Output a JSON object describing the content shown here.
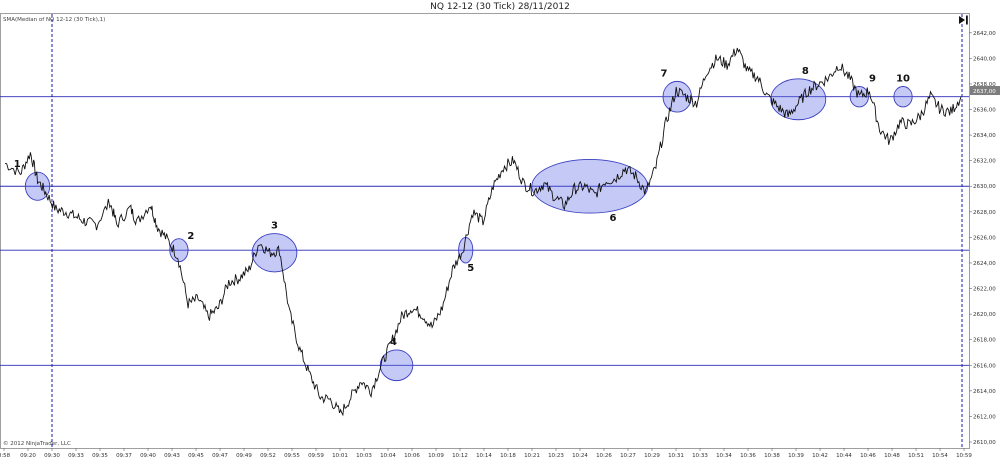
{
  "chart_data": {
    "type": "line",
    "title": "NQ 12-12 (30 Tick)  28/11/2012",
    "indicator_label": "SMA(Median of NQ 12-12 (30 Tick),1)",
    "copyright": "© 2012 NinjaTrader, LLC",
    "last_price_label": "2637,00",
    "ylim": [
      2610,
      2643
    ],
    "y_ticks": [
      "2642,00",
      "2640,00",
      "2638,00",
      "2636,00",
      "2634,00",
      "2632,00",
      "2630,00",
      "2628,00",
      "2626,00",
      "2624,00",
      "2622,00",
      "2620,00",
      "2618,00",
      "2616,00",
      "2614,00",
      "2612,00",
      "2610,00"
    ],
    "x_ticks": [
      "8:58",
      "09:20",
      "09:30",
      "09:33",
      "09:35",
      "09:37",
      "09:40",
      "09:43",
      "09:45",
      "09:47",
      "09:49",
      "09:52",
      "09:55",
      "09:59",
      "10:01",
      "10:03",
      "10:04",
      "10:06",
      "10:09",
      "10:12",
      "10:14",
      "10:18",
      "10:21",
      "10:23",
      "10:24",
      "10:26",
      "10:27",
      "10:29",
      "10:31",
      "10:33",
      "10:34",
      "10:36",
      "10:38",
      "10:39",
      "10:42",
      "10:44",
      "10:46",
      "10:48",
      "10:51",
      "10:54",
      "10:59"
    ],
    "horizontal_levels": [
      2637,
      2630,
      2625,
      2616
    ],
    "vertical_markers": [
      "09:30",
      "10:59"
    ],
    "price_path": [
      {
        "i": 0,
        "y": 2631.8
      },
      {
        "i": 1.5,
        "y": 2631.0
      },
      {
        "i": 2.5,
        "y": 2632.6
      },
      {
        "i": 3.2,
        "y": 2630.5
      },
      {
        "i": 4,
        "y": 2629.5
      },
      {
        "i": 5,
        "y": 2628.2
      },
      {
        "i": 6,
        "y": 2628.0
      },
      {
        "i": 7,
        "y": 2627.6
      },
      {
        "i": 8,
        "y": 2627.2
      },
      {
        "i": 9,
        "y": 2627.0
      },
      {
        "i": 10.3,
        "y": 2628.8
      },
      {
        "i": 11,
        "y": 2627.0
      },
      {
        "i": 12.3,
        "y": 2628.3
      },
      {
        "i": 13,
        "y": 2627.2
      },
      {
        "i": 14.3,
        "y": 2628.6
      },
      {
        "i": 15,
        "y": 2626.8
      },
      {
        "i": 16,
        "y": 2625.8
      },
      {
        "i": 17,
        "y": 2624.5
      },
      {
        "i": 18,
        "y": 2620.8
      },
      {
        "i": 19,
        "y": 2621.2
      },
      {
        "i": 20,
        "y": 2619.8
      },
      {
        "i": 21,
        "y": 2620.5
      },
      {
        "i": 22,
        "y": 2622.5
      },
      {
        "i": 23,
        "y": 2622.8
      },
      {
        "i": 24,
        "y": 2623.5
      },
      {
        "i": 25,
        "y": 2625.6
      },
      {
        "i": 26,
        "y": 2624.8
      },
      {
        "i": 27,
        "y": 2625.0
      },
      {
        "i": 28,
        "y": 2620.0
      },
      {
        "i": 29,
        "y": 2617.2
      },
      {
        "i": 30,
        "y": 2615.2
      },
      {
        "i": 31,
        "y": 2613.5
      },
      {
        "i": 32,
        "y": 2613.3
      },
      {
        "i": 33,
        "y": 2612.2
      },
      {
        "i": 34,
        "y": 2613.5
      },
      {
        "i": 35,
        "y": 2614.8
      },
      {
        "i": 36,
        "y": 2614.0
      },
      {
        "i": 37,
        "y": 2616.0
      },
      {
        "i": 38,
        "y": 2617.8
      },
      {
        "i": 39,
        "y": 2619.8
      },
      {
        "i": 40,
        "y": 2620.5
      },
      {
        "i": 41,
        "y": 2620.0
      },
      {
        "i": 42,
        "y": 2619.0
      },
      {
        "i": 43,
        "y": 2620.5
      },
      {
        "i": 44,
        "y": 2623.5
      },
      {
        "i": 45,
        "y": 2625.0
      },
      {
        "i": 46,
        "y": 2628.0
      },
      {
        "i": 47,
        "y": 2627.2
      },
      {
        "i": 48,
        "y": 2630.0
      },
      {
        "i": 49,
        "y": 2631.5
      },
      {
        "i": 50,
        "y": 2632.0
      },
      {
        "i": 51,
        "y": 2630.2
      },
      {
        "i": 52,
        "y": 2629.6
      },
      {
        "i": 53,
        "y": 2630.2
      },
      {
        "i": 54,
        "y": 2629.2
      },
      {
        "i": 55,
        "y": 2628.5
      },
      {
        "i": 56,
        "y": 2629.8
      },
      {
        "i": 57,
        "y": 2630.0
      },
      {
        "i": 58,
        "y": 2629.3
      },
      {
        "i": 59,
        "y": 2630.4
      },
      {
        "i": 60,
        "y": 2630.6
      },
      {
        "i": 61,
        "y": 2631.4
      },
      {
        "i": 62,
        "y": 2630.8
      },
      {
        "i": 63,
        "y": 2629.5
      },
      {
        "i": 64,
        "y": 2631.5
      },
      {
        "i": 65,
        "y": 2635.0
      },
      {
        "i": 66,
        "y": 2637.5
      },
      {
        "i": 67,
        "y": 2637.0
      },
      {
        "i": 68,
        "y": 2636.5
      },
      {
        "i": 69,
        "y": 2639.0
      },
      {
        "i": 70,
        "y": 2640.0
      },
      {
        "i": 71,
        "y": 2639.5
      },
      {
        "i": 72,
        "y": 2640.8
      },
      {
        "i": 73,
        "y": 2639.0
      },
      {
        "i": 74,
        "y": 2638.5
      },
      {
        "i": 75,
        "y": 2637.0
      },
      {
        "i": 76,
        "y": 2636.2
      },
      {
        "i": 77,
        "y": 2635.5
      },
      {
        "i": 78,
        "y": 2636.5
      },
      {
        "i": 79,
        "y": 2637.5
      },
      {
        "i": 80,
        "y": 2638.0
      },
      {
        "i": 81,
        "y": 2638.5
      },
      {
        "i": 82,
        "y": 2639.5
      },
      {
        "i": 83,
        "y": 2638.5
      },
      {
        "i": 84,
        "y": 2637.0
      },
      {
        "i": 85,
        "y": 2637.5
      },
      {
        "i": 86,
        "y": 2634.5
      },
      {
        "i": 87,
        "y": 2633.5
      },
      {
        "i": 88,
        "y": 2635.0
      },
      {
        "i": 89,
        "y": 2634.8
      },
      {
        "i": 90,
        "y": 2635.5
      },
      {
        "i": 91,
        "y": 2637.0
      },
      {
        "i": 92,
        "y": 2636.0
      },
      {
        "i": 93,
        "y": 2635.8
      },
      {
        "i": 94,
        "y": 2637.0
      }
    ],
    "annotations": [
      {
        "label": "1",
        "x": 3.2,
        "y": 2630,
        "rx": 1.2,
        "ry": 1.1
      },
      {
        "label": "2",
        "x": 17.1,
        "y": 2625,
        "rx": 0.9,
        "ry": 0.9
      },
      {
        "label": "3",
        "x": 26.5,
        "y": 2624.8,
        "rx": 2.2,
        "ry": 1.5
      },
      {
        "label": "4",
        "x": 38.5,
        "y": 2616,
        "rx": 1.6,
        "ry": 1.2
      },
      {
        "label": "5",
        "x": 45.3,
        "y": 2625,
        "rx": 0.7,
        "ry": 1.0
      },
      {
        "label": "6",
        "x": 57.5,
        "y": 2630,
        "rx": 5.7,
        "ry": 2.1
      },
      {
        "label": "7",
        "x": 66.1,
        "y": 2637,
        "rx": 1.4,
        "ry": 1.2
      },
      {
        "label": "8",
        "x": 78.0,
        "y": 2636.8,
        "rx": 2.7,
        "ry": 1.6
      },
      {
        "label": "9",
        "x": 84.0,
        "y": 2637.0,
        "rx": 0.9,
        "ry": 0.8
      },
      {
        "label": "10",
        "x": 88.3,
        "y": 2637.0,
        "rx": 0.9,
        "ry": 0.8
      }
    ],
    "grid": false
  }
}
